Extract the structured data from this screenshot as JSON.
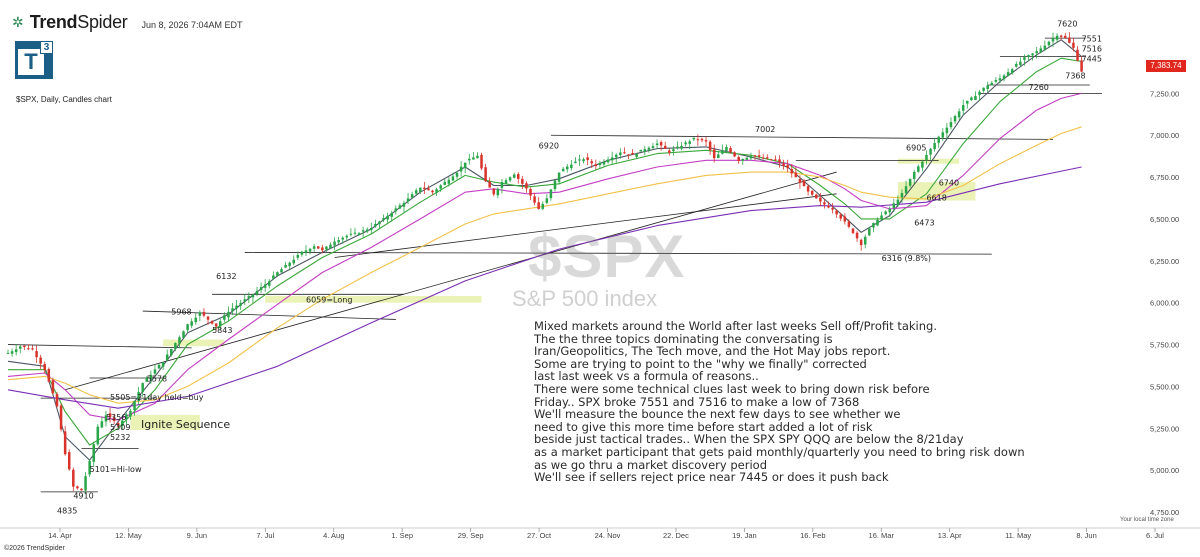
{
  "header": {
    "brand_first": "Trend",
    "brand_second": "Spider",
    "date": "Jun 8, 2026 7:04AM EDT",
    "logo_letter": "T",
    "logo_sup": "3",
    "subtitle": "$SPX, Daily, Candles chart",
    "copyright": "©2026 TrendSpider",
    "localtime": "Your local time zone"
  },
  "watermark": {
    "ticker": "$SPX",
    "name": "S&P 500 index"
  },
  "current_price": {
    "label": "7,383.74",
    "value": 7383.74,
    "color": "#e0261d"
  },
  "commentary": [
    "Mixed markets around the World after last weeks Sell off/Profit taking.",
    "The the three topics dominating the conversating is",
    "Iran/Geopolitics, The Tech move, and the Hot May jobs report.",
    "Some are trying to point to the \"why we finally\" corrected",
    "last last week vs a formula of reasons..",
    "There were some technical clues last week to bring down risk before",
    "Friday.. SPX broke 7551 and 7516 to make a low of 7368",
    "We'll measure the bounce the next few days to see whether we",
    "need to give this more time before start added a lot of risk",
    "beside just tactical trades.. When the SPX SPY QQQ are below the 8/21day",
    "as a market participant that gets paid monthly/quarterly you need to bring risk down",
    "as we go thru a market discovery period",
    "We'll see if sellers reject price near 7445 or does it push back"
  ],
  "chart_data": {
    "type": "candlestick",
    "ylim": [
      4750,
      7700
    ],
    "y_ticks": [
      {
        "value": 7250,
        "label": "7,250.00"
      },
      {
        "value": 7000,
        "label": "7,000.00"
      },
      {
        "value": 6750,
        "label": "6,750.00"
      },
      {
        "value": 6500,
        "label": "6,500.00"
      },
      {
        "value": 6250,
        "label": "6,250.00"
      },
      {
        "value": 6000,
        "label": "6,000.00"
      },
      {
        "value": 5750,
        "label": "5,750.00"
      },
      {
        "value": 5500,
        "label": "5,500.00"
      },
      {
        "value": 5250,
        "label": "5,250.00"
      },
      {
        "value": 5000,
        "label": "5,000.00"
      },
      {
        "value": 4750,
        "label": "4,750.00"
      }
    ],
    "x_ticks": [
      "14. Apr",
      "12. May",
      "9. Jun",
      "7. Jul",
      "4. Aug",
      "1. Sep",
      "29. Sep",
      "27. Oct",
      "24. Nov",
      "22. Dec",
      "19. Jan",
      "16. Feb",
      "16. Mar",
      "13. Apr",
      "11. May",
      "8. Jun",
      "6. Jul"
    ],
    "grid": false,
    "moving_averages": [
      {
        "color": "#4b5563"
      },
      {
        "color": "#3aa83a"
      },
      {
        "color": "#c43ec4"
      },
      {
        "color": "#f2c14a"
      },
      {
        "color": "#7b2fb5"
      }
    ],
    "price_path": [
      [
        0,
        5700
      ],
      [
        3,
        5740
      ],
      [
        6,
        5720
      ],
      [
        9,
        5600
      ],
      [
        12,
        5380
      ],
      [
        14,
        5100
      ],
      [
        16,
        4900
      ],
      [
        18,
        4880
      ],
      [
        20,
        5050
      ],
      [
        22,
        5260
      ],
      [
        24,
        5330
      ],
      [
        27,
        5270
      ],
      [
        30,
        5360
      ],
      [
        33,
        5520
      ],
      [
        36,
        5600
      ],
      [
        38,
        5650
      ],
      [
        41,
        5760
      ],
      [
        44,
        5870
      ],
      [
        47,
        5940
      ],
      [
        49,
        5900
      ],
      [
        51,
        5860
      ],
      [
        54,
        5950
      ],
      [
        57,
        6000
      ],
      [
        60,
        6050
      ],
      [
        63,
        6110
      ],
      [
        66,
        6180
      ],
      [
        69,
        6240
      ],
      [
        72,
        6300
      ],
      [
        75,
        6340
      ],
      [
        77,
        6310
      ],
      [
        80,
        6370
      ],
      [
        83,
        6400
      ],
      [
        86,
        6420
      ],
      [
        89,
        6450
      ],
      [
        92,
        6500
      ],
      [
        95,
        6560
      ],
      [
        98,
        6620
      ],
      [
        101,
        6690
      ],
      [
        104,
        6660
      ],
      [
        107,
        6720
      ],
      [
        110,
        6780
      ],
      [
        112,
        6840
      ],
      [
        115,
        6880
      ],
      [
        117,
        6720
      ],
      [
        119,
        6650
      ],
      [
        121,
        6720
      ],
      [
        124,
        6770
      ],
      [
        127,
        6680
      ],
      [
        130,
        6560
      ],
      [
        132,
        6620
      ],
      [
        135,
        6780
      ],
      [
        138,
        6830
      ],
      [
        141,
        6860
      ],
      [
        144,
        6820
      ],
      [
        147,
        6860
      ],
      [
        150,
        6900
      ],
      [
        153,
        6880
      ],
      [
        156,
        6920
      ],
      [
        159,
        6950
      ],
      [
        162,
        6900
      ],
      [
        165,
        6940
      ],
      [
        168,
        6980
      ],
      [
        171,
        6960
      ],
      [
        173,
        6860
      ],
      [
        176,
        6930
      ],
      [
        179,
        6850
      ],
      [
        182,
        6880
      ],
      [
        185,
        6860
      ],
      [
        188,
        6850
      ],
      [
        191,
        6800
      ],
      [
        194,
        6720
      ],
      [
        196,
        6660
      ],
      [
        199,
        6600
      ],
      [
        202,
        6560
      ],
      [
        205,
        6480
      ],
      [
        207,
        6420
      ],
      [
        209,
        6350
      ],
      [
        211,
        6440
      ],
      [
        213,
        6500
      ],
      [
        216,
        6560
      ],
      [
        219,
        6650
      ],
      [
        222,
        6780
      ],
      [
        225,
        6880
      ],
      [
        228,
        6990
      ],
      [
        231,
        7080
      ],
      [
        234,
        7180
      ],
      [
        237,
        7240
      ],
      [
        240,
        7300
      ],
      [
        243,
        7340
      ],
      [
        246,
        7400
      ],
      [
        249,
        7460
      ],
      [
        252,
        7500
      ],
      [
        255,
        7560
      ],
      [
        257,
        7600
      ],
      [
        259,
        7580
      ],
      [
        261,
        7520
      ],
      [
        263,
        7383
      ]
    ],
    "ma_points": [
      [
        [
          0,
          5650
        ],
        [
          9,
          5620
        ],
        [
          14,
          5200
        ],
        [
          20,
          5060
        ],
        [
          27,
          5290
        ],
        [
          36,
          5560
        ],
        [
          44,
          5820
        ],
        [
          54,
          5930
        ],
        [
          66,
          6160
        ],
        [
          77,
          6300
        ],
        [
          89,
          6440
        ],
        [
          101,
          6660
        ],
        [
          112,
          6810
        ],
        [
          119,
          6700
        ],
        [
          127,
          6700
        ],
        [
          135,
          6740
        ],
        [
          147,
          6850
        ],
        [
          159,
          6920
        ],
        [
          171,
          6930
        ],
        [
          182,
          6870
        ],
        [
          191,
          6810
        ],
        [
          199,
          6640
        ],
        [
          205,
          6510
        ],
        [
          209,
          6420
        ],
        [
          216,
          6520
        ],
        [
          225,
          6800
        ],
        [
          234,
          7120
        ],
        [
          243,
          7320
        ],
        [
          252,
          7480
        ],
        [
          258,
          7570
        ],
        [
          263,
          7470
        ]
      ],
      [
        [
          0,
          5600
        ],
        [
          9,
          5600
        ],
        [
          14,
          5350
        ],
        [
          20,
          5150
        ],
        [
          27,
          5250
        ],
        [
          36,
          5480
        ],
        [
          44,
          5750
        ],
        [
          54,
          5890
        ],
        [
          66,
          6100
        ],
        [
          77,
          6270
        ],
        [
          89,
          6410
        ],
        [
          101,
          6600
        ],
        [
          112,
          6760
        ],
        [
          119,
          6720
        ],
        [
          127,
          6690
        ],
        [
          135,
          6710
        ],
        [
          147,
          6820
        ],
        [
          159,
          6890
        ],
        [
          171,
          6910
        ],
        [
          182,
          6880
        ],
        [
          191,
          6830
        ],
        [
          199,
          6700
        ],
        [
          205,
          6590
        ],
        [
          209,
          6500
        ],
        [
          216,
          6500
        ],
        [
          225,
          6650
        ],
        [
          234,
          6950
        ],
        [
          243,
          7200
        ],
        [
          252,
          7380
        ],
        [
          258,
          7460
        ],
        [
          263,
          7440
        ]
      ],
      [
        [
          0,
          5560
        ],
        [
          9,
          5580
        ],
        [
          14,
          5480
        ],
        [
          20,
          5330
        ],
        [
          27,
          5300
        ],
        [
          36,
          5400
        ],
        [
          44,
          5600
        ],
        [
          54,
          5780
        ],
        [
          66,
          5990
        ],
        [
          77,
          6180
        ],
        [
          89,
          6330
        ],
        [
          101,
          6500
        ],
        [
          112,
          6660
        ],
        [
          119,
          6680
        ],
        [
          127,
          6650
        ],
        [
          135,
          6660
        ],
        [
          147,
          6740
        ],
        [
          159,
          6810
        ],
        [
          171,
          6850
        ],
        [
          182,
          6850
        ],
        [
          191,
          6830
        ],
        [
          199,
          6760
        ],
        [
          205,
          6680
        ],
        [
          209,
          6610
        ],
        [
          216,
          6560
        ],
        [
          225,
          6580
        ],
        [
          234,
          6760
        ],
        [
          243,
          6980
        ],
        [
          252,
          7150
        ],
        [
          258,
          7220
        ],
        [
          263,
          7250
        ]
      ],
      [
        [
          0,
          5540
        ],
        [
          9,
          5560
        ],
        [
          14,
          5520
        ],
        [
          20,
          5450
        ],
        [
          27,
          5400
        ],
        [
          36,
          5420
        ],
        [
          44,
          5500
        ],
        [
          54,
          5640
        ],
        [
          66,
          5850
        ],
        [
          77,
          6020
        ],
        [
          89,
          6180
        ],
        [
          101,
          6330
        ],
        [
          112,
          6470
        ],
        [
          119,
          6530
        ],
        [
          127,
          6560
        ],
        [
          135,
          6590
        ],
        [
          147,
          6650
        ],
        [
          159,
          6710
        ],
        [
          171,
          6760
        ],
        [
          182,
          6780
        ],
        [
          191,
          6780
        ],
        [
          199,
          6750
        ],
        [
          205,
          6700
        ],
        [
          209,
          6660
        ],
        [
          216,
          6630
        ],
        [
          225,
          6620
        ],
        [
          234,
          6700
        ],
        [
          243,
          6830
        ],
        [
          252,
          6940
        ],
        [
          258,
          7010
        ],
        [
          263,
          7050
        ]
      ],
      [
        [
          0,
          5480
        ],
        [
          14,
          5420
        ],
        [
          27,
          5370
        ],
        [
          44,
          5440
        ],
        [
          66,
          5620
        ],
        [
          89,
          5880
        ],
        [
          112,
          6130
        ],
        [
          135,
          6320
        ],
        [
          159,
          6460
        ],
        [
          182,
          6550
        ],
        [
          199,
          6580
        ],
        [
          209,
          6570
        ],
        [
          225,
          6600
        ],
        [
          243,
          6710
        ],
        [
          263,
          6810
        ]
      ]
    ],
    "level_lines": [
      {
        "y1": 7250,
        "y2": 7250,
        "x1": 238,
        "x2": 268
      },
      {
        "y1": 7300,
        "y2": 7300,
        "x1": 240,
        "x2": 265
      },
      {
        "y1": 7000,
        "y2": 6975,
        "x1": 133,
        "x2": 256
      },
      {
        "y1": 6850,
        "y2": 6850,
        "x1": 193,
        "x2": 228
      },
      {
        "y1": 6300,
        "y2": 6290,
        "x1": 58,
        "x2": 241
      },
      {
        "y1": 5750,
        "y2": 5730,
        "x1": 0,
        "x2": 45
      },
      {
        "y1": 5550,
        "y2": 5550,
        "x1": 20,
        "x2": 38
      },
      {
        "y1": 5430,
        "y2": 5430,
        "x1": 8,
        "x2": 36
      },
      {
        "y1": 5130,
        "y2": 5130,
        "x1": 18,
        "x2": 32
      },
      {
        "y1": 4870,
        "y2": 4870,
        "x1": 8,
        "x2": 22
      },
      {
        "y1": 5950,
        "y2": 5900,
        "x1": 33,
        "x2": 95
      },
      {
        "y1": 6050,
        "y2": 6050,
        "x1": 50,
        "x2": 97
      },
      {
        "y1": 5480,
        "y2": 6780,
        "x1": 14,
        "x2": 203
      },
      {
        "y1": 6270,
        "y2": 6650,
        "x1": 80,
        "x2": 203
      },
      {
        "y1": 7580,
        "y2": 7580,
        "x1": 254,
        "x2": 264
      },
      {
        "y1": 7470,
        "y2": 7470,
        "x1": 243,
        "x2": 264
      }
    ],
    "annotations": [
      {
        "text": "7620",
        "x": 257,
        "y": 7650
      },
      {
        "text": "7551",
        "x": 263,
        "y": 7560
      },
      {
        "text": "7516",
        "x": 263,
        "y": 7500
      },
      {
        "text": "7445",
        "x": 263,
        "y": 7440
      },
      {
        "text": "7368",
        "x": 259,
        "y": 7340
      },
      {
        "text": "7260",
        "x": 250,
        "y": 7270
      },
      {
        "text": "7002",
        "x": 183,
        "y": 7020
      },
      {
        "text": "6920",
        "x": 130,
        "y": 6920
      },
      {
        "text": "6905",
        "x": 220,
        "y": 6910
      },
      {
        "text": "6740",
        "x": 228,
        "y": 6700
      },
      {
        "text": "6618",
        "x": 225,
        "y": 6610
      },
      {
        "text": "6473",
        "x": 222,
        "y": 6460
      },
      {
        "text": "6316 (9.8%)",
        "x": 214,
        "y": 6250
      },
      {
        "text": "6132",
        "x": 51,
        "y": 6140
      },
      {
        "text": "6059=Long",
        "x": 73,
        "y": 6000
      },
      {
        "text": "5968",
        "x": 40,
        "y": 5930
      },
      {
        "text": "5843",
        "x": 50,
        "y": 5820
      },
      {
        "text": "5578",
        "x": 34,
        "y": 5530
      },
      {
        "text": "5505=21day held=buy",
        "x": 25,
        "y": 5420
      },
      {
        "text": "5356",
        "x": 24,
        "y": 5300
      },
      {
        "text": "5309",
        "x": 25,
        "y": 5240
      },
      {
        "text": "5232",
        "x": 25,
        "y": 5180
      },
      {
        "text": "5101=Hi-low",
        "x": 20,
        "y": 4990
      },
      {
        "text": "4910",
        "x": 16,
        "y": 4830
      },
      {
        "text": "4835",
        "x": 12,
        "y": 4740
      }
    ],
    "highlight_zones": [
      {
        "x1": 63,
        "x2": 116,
        "y1": 6040,
        "y2": 6000
      },
      {
        "x1": 38,
        "x2": 53,
        "y1": 5780,
        "y2": 5740
      },
      {
        "x1": 218,
        "x2": 237,
        "y1": 6720,
        "y2": 6610
      },
      {
        "x1": 218,
        "x2": 233,
        "y1": 6860,
        "y2": 6830
      },
      {
        "x1": 30,
        "x2": 47,
        "y1": 5330,
        "y2": 5240
      }
    ],
    "ignite_label": "Ignite Sequence"
  }
}
